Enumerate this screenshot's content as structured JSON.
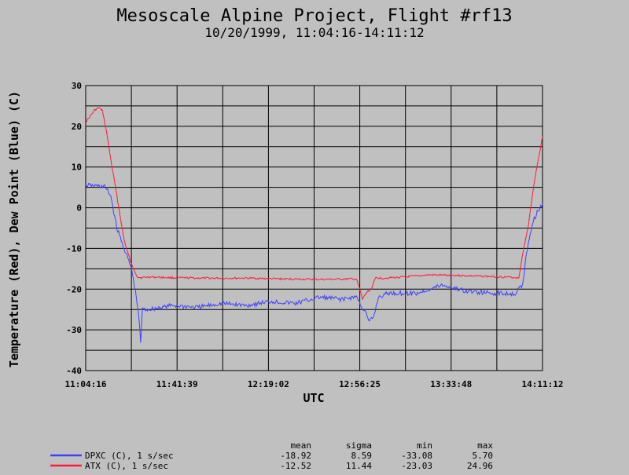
{
  "chart_data": {
    "type": "line",
    "title": "Mesoscale Alpine Project, Flight #rf13",
    "subtitle": "10/20/1999, 11:04:16-14:11:12",
    "xlabel": "UTC",
    "ylabel": "Temperature (Red), Dew Point (Blue) (C)",
    "x_range": [
      "11:04:16",
      "14:11:12"
    ],
    "ylim": [
      -40,
      30
    ],
    "y_ticks": [
      30,
      20,
      10,
      0,
      -10,
      -20,
      -30,
      -40
    ],
    "x_ticks": [
      "11:04:16",
      "11:41:39",
      "12:19:02",
      "12:56:25",
      "13:33:48",
      "14:11:12"
    ],
    "grid": true,
    "series": [
      {
        "name": "ATX (C), 1 s/sec",
        "color": "#ff1a3c",
        "x": [
          "11:04:16",
          "11:08:00",
          "11:09:30",
          "11:11:00",
          "11:13:00",
          "11:14:30",
          "11:17:00",
          "11:20:00",
          "11:23:00",
          "11:25:30",
          "11:27:00",
          "11:30:00",
          "11:40:00",
          "11:55:00",
          "12:10:00",
          "12:25:00",
          "12:40:00",
          "12:55:00",
          "12:56:25",
          "12:57:30",
          "12:59:00",
          "13:01:00",
          "13:03:00",
          "13:06:00",
          "13:15:00",
          "13:25:00",
          "13:35:00",
          "13:45:00",
          "13:55:00",
          "14:01:30",
          "14:03:30",
          "14:05:30",
          "14:07:30",
          "14:09:30",
          "14:11:12"
        ],
        "y": [
          21,
          24,
          24.5,
          24,
          18,
          12,
          3,
          -8,
          -14,
          -17,
          -17.2,
          -17,
          -17.2,
          -17.3,
          -17.3,
          -17.5,
          -17.6,
          -17.5,
          -20,
          -22.5,
          -21,
          -20,
          -17.2,
          -17.3,
          -17,
          -16.5,
          -16.6,
          -16.8,
          -17,
          -17.2,
          -10,
          -4,
          5,
          12,
          17.5
        ]
      },
      {
        "name": "DPXC (C), 1 s/sec",
        "color": "#4040ff",
        "x": [
          "11:04:16",
          "11:12:00",
          "11:14:30",
          "11:17:00",
          "11:20:00",
          "11:23:00",
          "11:25:00",
          "11:26:10",
          "11:26:45",
          "11:27:30",
          "11:30:00",
          "11:40:00",
          "11:50:00",
          "12:00:00",
          "12:10:00",
          "12:20:00",
          "12:30:00",
          "12:40:00",
          "12:50:00",
          "12:55:00",
          "12:57:00",
          "12:59:00",
          "13:00:00",
          "13:02:00",
          "13:04:00",
          "13:08:00",
          "13:20:00",
          "13:30:00",
          "13:40:00",
          "13:50:00",
          "14:00:00",
          "14:03:00",
          "14:05:00",
          "14:07:00",
          "14:09:00",
          "14:11:12"
        ],
        "y": [
          5.5,
          5.2,
          3,
          -5,
          -10,
          -15,
          -22,
          -28,
          -33,
          -25,
          -25,
          -24,
          -24.5,
          -23.5,
          -24,
          -23,
          -23.5,
          -22,
          -22.5,
          -21.8,
          -24,
          -26,
          -28,
          -27,
          -22,
          -21,
          -21,
          -19,
          -20.5,
          -21,
          -21,
          -19,
          -10,
          -4,
          -1,
          1
        ]
      }
    ],
    "stats": {
      "headers": [
        "mean",
        "sigma",
        "min",
        "max"
      ],
      "rows": [
        {
          "label": "DPXC (C), 1 s/sec",
          "color": "#4040ff",
          "values": [
            "-18.92",
            "8.59",
            "-33.08",
            "5.70"
          ]
        },
        {
          "label": "ATX (C), 1 s/sec",
          "color": "#ff1a3c",
          "values": [
            "-12.52",
            "11.44",
            "-23.03",
            "24.96"
          ]
        }
      ]
    }
  }
}
